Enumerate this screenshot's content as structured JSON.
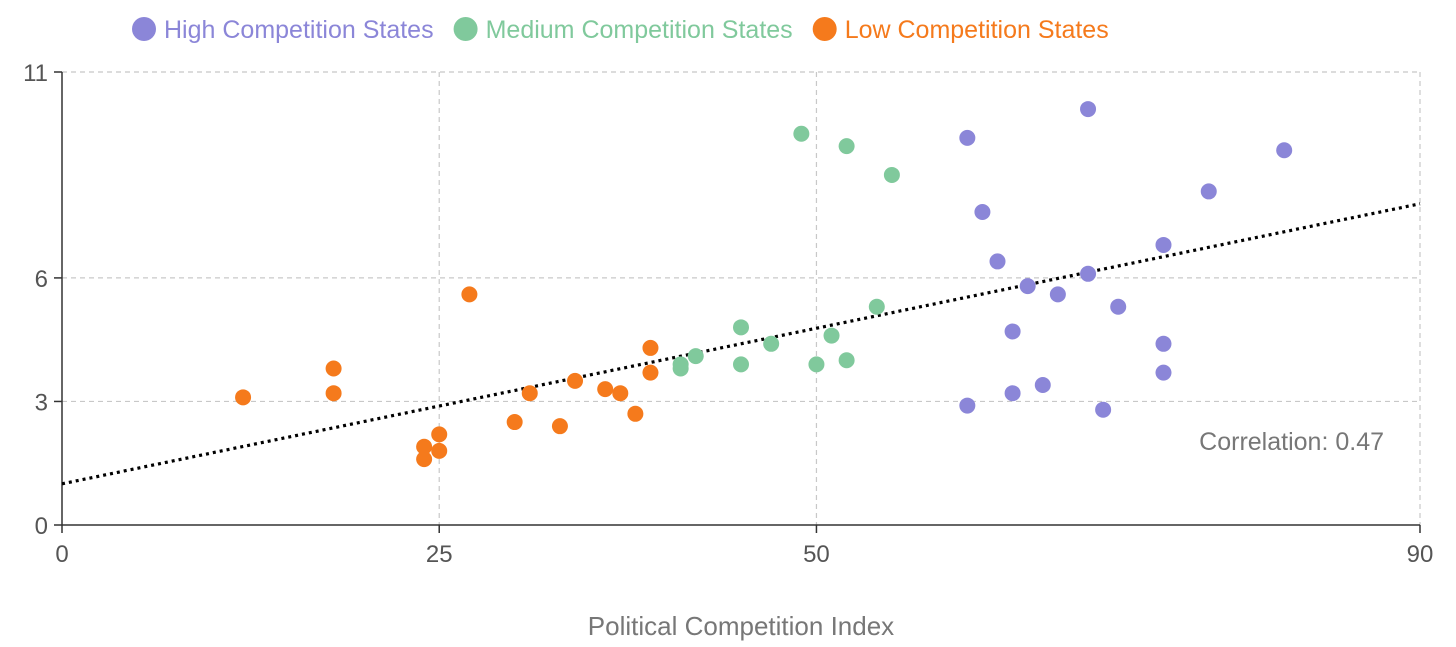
{
  "chart_data": {
    "type": "scatter",
    "title": "",
    "xlabel": "Political Competition Index",
    "ylabel": "",
    "xlim": [
      0,
      90
    ],
    "ylim": [
      0,
      11
    ],
    "x_ticks": [
      0,
      25,
      50,
      90
    ],
    "y_ticks": [
      0,
      3,
      6,
      11
    ],
    "x_tick_labels": [
      "0",
      "25",
      "50",
      "90"
    ],
    "y_tick_labels": [
      "0",
      "3",
      "6",
      "11"
    ],
    "grid": true,
    "legend_position": "top",
    "series": [
      {
        "name": "High Competition States",
        "color": "#8b86d8",
        "points": [
          {
            "x": 60,
            "y": 9.4
          },
          {
            "x": 68,
            "y": 10.1
          },
          {
            "x": 81,
            "y": 9.1
          },
          {
            "x": 76,
            "y": 8.1
          },
          {
            "x": 61,
            "y": 7.6
          },
          {
            "x": 73,
            "y": 6.8
          },
          {
            "x": 62,
            "y": 6.4
          },
          {
            "x": 68,
            "y": 6.1
          },
          {
            "x": 64,
            "y": 5.8
          },
          {
            "x": 66,
            "y": 5.6
          },
          {
            "x": 70,
            "y": 5.3
          },
          {
            "x": 63,
            "y": 4.7
          },
          {
            "x": 73,
            "y": 4.4
          },
          {
            "x": 73,
            "y": 3.7
          },
          {
            "x": 65,
            "y": 3.4
          },
          {
            "x": 63,
            "y": 3.2
          },
          {
            "x": 60,
            "y": 2.9
          },
          {
            "x": 69,
            "y": 2.8
          }
        ]
      },
      {
        "name": "Medium Competition States",
        "color": "#80c99c",
        "points": [
          {
            "x": 49,
            "y": 9.5
          },
          {
            "x": 52,
            "y": 9.2
          },
          {
            "x": 55,
            "y": 8.5
          },
          {
            "x": 54,
            "y": 5.3
          },
          {
            "x": 45,
            "y": 4.8
          },
          {
            "x": 51,
            "y": 4.6
          },
          {
            "x": 47,
            "y": 4.4
          },
          {
            "x": 42,
            "y": 4.1
          },
          {
            "x": 41,
            "y": 3.9
          },
          {
            "x": 41,
            "y": 3.8
          },
          {
            "x": 45,
            "y": 3.9
          },
          {
            "x": 50,
            "y": 3.9
          },
          {
            "x": 52,
            "y": 4.0
          }
        ]
      },
      {
        "name": "Low Competition States",
        "color": "#f57a1c",
        "points": [
          {
            "x": 27,
            "y": 5.6
          },
          {
            "x": 18,
            "y": 3.8
          },
          {
            "x": 18,
            "y": 3.2
          },
          {
            "x": 12,
            "y": 3.1
          },
          {
            "x": 39,
            "y": 4.3
          },
          {
            "x": 39,
            "y": 3.7
          },
          {
            "x": 34,
            "y": 3.5
          },
          {
            "x": 36,
            "y": 3.3
          },
          {
            "x": 37,
            "y": 3.2
          },
          {
            "x": 31,
            "y": 3.2
          },
          {
            "x": 38,
            "y": 2.7
          },
          {
            "x": 30,
            "y": 2.5
          },
          {
            "x": 33,
            "y": 2.4
          },
          {
            "x": 25,
            "y": 2.2
          },
          {
            "x": 24,
            "y": 1.9
          },
          {
            "x": 25,
            "y": 1.8
          },
          {
            "x": 24,
            "y": 1.6
          }
        ]
      }
    ],
    "trendline": {
      "x": [
        0,
        90
      ],
      "y": [
        1.0,
        7.8
      ],
      "color": "#000000",
      "style": "dotted"
    },
    "annotation": "Correlation: 0.47"
  }
}
